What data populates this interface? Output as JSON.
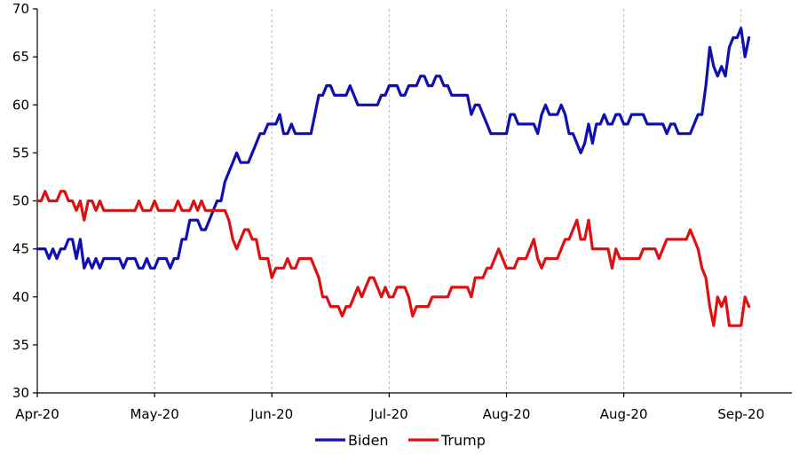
{
  "chart_data": {
    "type": "line",
    "title": "",
    "xlabel": "",
    "ylabel": "",
    "ylim": [
      30,
      70
    ],
    "yticks": [
      30,
      35,
      40,
      45,
      50,
      55,
      60,
      65,
      70
    ],
    "xticks": [
      {
        "x": 0,
        "label": "Apr-20"
      },
      {
        "x": 30,
        "label": "May-20"
      },
      {
        "x": 60,
        "label": "Jun-20"
      },
      {
        "x": 90,
        "label": "Jul-20"
      },
      {
        "x": 120,
        "label": "Aug-20"
      },
      {
        "x": 150,
        "label": "Aug-20"
      },
      {
        "x": 180,
        "label": "Sep-20"
      }
    ],
    "xlim": [
      0,
      193
    ],
    "grid": "vertical dashed",
    "legend_position": "bottom",
    "series": [
      {
        "name": "Biden",
        "color": "#1010b0",
        "points": [
          [
            0,
            45
          ],
          [
            2,
            45
          ],
          [
            3,
            44
          ],
          [
            4,
            45
          ],
          [
            5,
            44
          ],
          [
            6,
            45
          ],
          [
            7,
            45
          ],
          [
            8,
            46
          ],
          [
            9,
            46
          ],
          [
            10,
            44
          ],
          [
            11,
            46
          ],
          [
            12,
            43
          ],
          [
            13,
            44
          ],
          [
            14,
            43
          ],
          [
            15,
            44
          ],
          [
            16,
            43
          ],
          [
            17,
            44
          ],
          [
            21,
            44
          ],
          [
            22,
            43
          ],
          [
            23,
            44
          ],
          [
            25,
            44
          ],
          [
            26,
            43
          ],
          [
            27,
            43
          ],
          [
            28,
            44
          ],
          [
            29,
            43
          ],
          [
            30,
            43
          ],
          [
            31,
            44
          ],
          [
            33,
            44
          ],
          [
            34,
            43
          ],
          [
            35,
            44
          ],
          [
            36,
            44
          ],
          [
            37,
            46
          ],
          [
            38,
            46
          ],
          [
            39,
            48
          ],
          [
            41,
            48
          ],
          [
            42,
            47
          ],
          [
            43,
            47
          ],
          [
            44,
            48
          ],
          [
            45,
            49
          ],
          [
            46,
            50
          ],
          [
            47,
            50
          ],
          [
            48,
            52
          ],
          [
            49,
            53
          ],
          [
            50,
            54
          ],
          [
            51,
            55
          ],
          [
            52,
            54
          ],
          [
            54,
            54
          ],
          [
            55,
            55
          ],
          [
            56,
            56
          ],
          [
            57,
            57
          ],
          [
            58,
            57
          ],
          [
            59,
            58
          ],
          [
            61,
            58
          ],
          [
            62,
            59
          ],
          [
            63,
            57
          ],
          [
            64,
            57
          ],
          [
            65,
            58
          ],
          [
            66,
            57
          ],
          [
            70,
            57
          ],
          [
            71,
            59
          ],
          [
            72,
            61
          ],
          [
            73,
            61
          ],
          [
            74,
            62
          ],
          [
            75,
            62
          ],
          [
            76,
            61
          ],
          [
            79,
            61
          ],
          [
            80,
            62
          ],
          [
            81,
            61
          ],
          [
            82,
            60
          ],
          [
            87,
            60
          ],
          [
            88,
            61
          ],
          [
            89,
            61
          ],
          [
            90,
            62
          ],
          [
            92,
            62
          ],
          [
            93,
            61
          ],
          [
            94,
            61
          ],
          [
            95,
            62
          ],
          [
            97,
            62
          ],
          [
            98,
            63
          ],
          [
            99,
            63
          ],
          [
            100,
            62
          ],
          [
            101,
            62
          ],
          [
            102,
            63
          ],
          [
            103,
            63
          ],
          [
            104,
            62
          ],
          [
            105,
            62
          ],
          [
            106,
            61
          ],
          [
            110,
            61
          ],
          [
            111,
            59
          ],
          [
            112,
            60
          ],
          [
            113,
            60
          ],
          [
            114,
            59
          ],
          [
            115,
            58
          ],
          [
            116,
            57
          ],
          [
            120,
            57
          ],
          [
            121,
            59
          ],
          [
            122,
            59
          ],
          [
            123,
            58
          ],
          [
            127,
            58
          ],
          [
            128,
            57
          ],
          [
            129,
            59
          ],
          [
            130,
            60
          ],
          [
            131,
            59
          ],
          [
            133,
            59
          ],
          [
            134,
            60
          ],
          [
            135,
            59
          ],
          [
            136,
            57
          ],
          [
            137,
            57
          ],
          [
            138,
            56
          ],
          [
            139,
            55
          ],
          [
            140,
            56
          ],
          [
            141,
            58
          ],
          [
            142,
            56
          ],
          [
            143,
            58
          ],
          [
            144,
            58
          ],
          [
            145,
            59
          ],
          [
            146,
            58
          ],
          [
            147,
            58
          ],
          [
            148,
            59
          ],
          [
            149,
            59
          ],
          [
            150,
            58
          ],
          [
            151,
            58
          ],
          [
            152,
            59
          ],
          [
            155,
            59
          ],
          [
            156,
            58
          ],
          [
            160,
            58
          ],
          [
            161,
            57
          ],
          [
            162,
            58
          ],
          [
            163,
            58
          ],
          [
            164,
            57
          ],
          [
            167,
            57
          ],
          [
            168,
            58
          ],
          [
            169,
            59
          ],
          [
            170,
            59
          ],
          [
            171,
            62
          ],
          [
            172,
            66
          ],
          [
            173,
            64
          ],
          [
            174,
            63
          ],
          [
            175,
            64
          ],
          [
            176,
            63
          ],
          [
            177,
            66
          ],
          [
            178,
            67
          ],
          [
            179,
            67
          ],
          [
            180,
            68
          ],
          [
            181,
            65
          ],
          [
            182,
            67
          ]
        ]
      },
      {
        "name": "Trump",
        "color": "#dd1111",
        "points": [
          [
            0,
            50
          ],
          [
            1,
            50
          ],
          [
            2,
            51
          ],
          [
            3,
            50
          ],
          [
            5,
            50
          ],
          [
            6,
            51
          ],
          [
            7,
            51
          ],
          [
            8,
            50
          ],
          [
            9,
            50
          ],
          [
            10,
            49
          ],
          [
            11,
            50
          ],
          [
            12,
            48
          ],
          [
            13,
            50
          ],
          [
            14,
            50
          ],
          [
            15,
            49
          ],
          [
            16,
            50
          ],
          [
            17,
            49
          ],
          [
            25,
            49
          ],
          [
            26,
            50
          ],
          [
            27,
            49
          ],
          [
            29,
            49
          ],
          [
            30,
            50
          ],
          [
            31,
            49
          ],
          [
            35,
            49
          ],
          [
            36,
            50
          ],
          [
            37,
            49
          ],
          [
            39,
            49
          ],
          [
            40,
            50
          ],
          [
            41,
            49
          ],
          [
            42,
            50
          ],
          [
            43,
            49
          ],
          [
            48,
            49
          ],
          [
            49,
            48
          ],
          [
            50,
            46
          ],
          [
            51,
            45
          ],
          [
            52,
            46
          ],
          [
            53,
            47
          ],
          [
            54,
            47
          ],
          [
            55,
            46
          ],
          [
            56,
            46
          ],
          [
            57,
            44
          ],
          [
            59,
            44
          ],
          [
            60,
            42
          ],
          [
            61,
            43
          ],
          [
            63,
            43
          ],
          [
            64,
            44
          ],
          [
            65,
            43
          ],
          [
            66,
            43
          ],
          [
            67,
            44
          ],
          [
            70,
            44
          ],
          [
            71,
            43
          ],
          [
            72,
            42
          ],
          [
            73,
            40
          ],
          [
            74,
            40
          ],
          [
            75,
            39
          ],
          [
            77,
            39
          ],
          [
            78,
            38
          ],
          [
            79,
            39
          ],
          [
            80,
            39
          ],
          [
            81,
            40
          ],
          [
            82,
            41
          ],
          [
            83,
            40
          ],
          [
            84,
            41
          ],
          [
            85,
            42
          ],
          [
            86,
            42
          ],
          [
            87,
            41
          ],
          [
            88,
            40
          ],
          [
            89,
            41
          ],
          [
            90,
            40
          ],
          [
            91,
            40
          ],
          [
            92,
            41
          ],
          [
            94,
            41
          ],
          [
            95,
            40
          ],
          [
            96,
            38
          ],
          [
            97,
            39
          ],
          [
            100,
            39
          ],
          [
            101,
            40
          ],
          [
            104,
            40
          ],
          [
            105,
            40
          ],
          [
            106,
            41
          ],
          [
            110,
            41
          ],
          [
            111,
            40
          ],
          [
            112,
            42
          ],
          [
            114,
            42
          ],
          [
            115,
            43
          ],
          [
            116,
            43
          ],
          [
            117,
            44
          ],
          [
            118,
            45
          ],
          [
            119,
            44
          ],
          [
            120,
            43
          ],
          [
            122,
            43
          ],
          [
            123,
            44
          ],
          [
            125,
            44
          ],
          [
            126,
            45
          ],
          [
            127,
            46
          ],
          [
            128,
            44
          ],
          [
            129,
            43
          ],
          [
            130,
            44
          ],
          [
            133,
            44
          ],
          [
            134,
            45
          ],
          [
            135,
            46
          ],
          [
            136,
            46
          ],
          [
            137,
            47
          ],
          [
            138,
            48
          ],
          [
            139,
            46
          ],
          [
            140,
            46
          ],
          [
            141,
            48
          ],
          [
            142,
            45
          ],
          [
            146,
            45
          ],
          [
            147,
            43
          ],
          [
            148,
            45
          ],
          [
            149,
            44
          ],
          [
            154,
            44
          ],
          [
            155,
            45
          ],
          [
            158,
            45
          ],
          [
            159,
            44
          ],
          [
            160,
            45
          ],
          [
            161,
            46
          ],
          [
            166,
            46
          ],
          [
            167,
            47
          ],
          [
            168,
            46
          ],
          [
            169,
            45
          ],
          [
            170,
            43
          ],
          [
            171,
            42
          ],
          [
            172,
            39
          ],
          [
            173,
            37
          ],
          [
            174,
            40
          ],
          [
            175,
            39
          ],
          [
            176,
            40
          ],
          [
            177,
            37
          ],
          [
            180,
            37
          ],
          [
            181,
            40
          ],
          [
            182,
            39
          ]
        ]
      }
    ]
  }
}
